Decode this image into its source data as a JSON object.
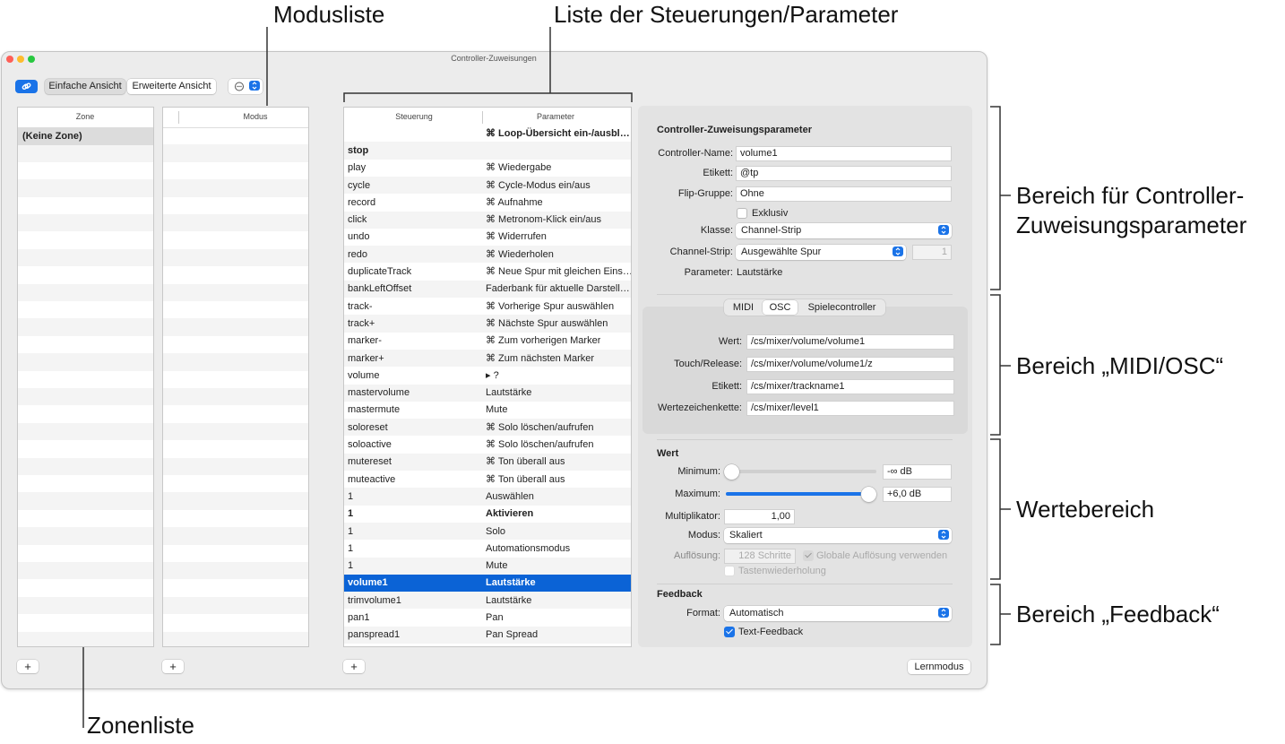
{
  "window": {
    "title": "Controller-Zuweisungen"
  },
  "toolbar": {
    "view_buttons": [
      "Einfache Ansicht",
      "Erweiterte Ansicht"
    ]
  },
  "zone_list": {
    "header": "Zone",
    "items": [
      "(Keine Zone)"
    ],
    "add_button": "+"
  },
  "mode_list": {
    "header": "Modus",
    "add_button": "+"
  },
  "controls_table": {
    "headers": [
      "Steuerung",
      "Parameter"
    ],
    "add_button": "+",
    "rows": [
      {
        "parameter": "⌘ Loop-Übersicht ein-/ausbl…",
        "bold": true
      },
      {
        "control": "stop",
        "bold": true
      },
      {
        "control": "play",
        "parameter": "⌘ Wiedergabe"
      },
      {
        "control": "cycle",
        "parameter": "⌘ Cycle-Modus ein/aus"
      },
      {
        "control": "record",
        "parameter": "⌘ Aufnahme"
      },
      {
        "control": "click",
        "parameter": "⌘ Metronom-Klick ein/aus"
      },
      {
        "control": "undo",
        "parameter": "⌘ Widerrufen"
      },
      {
        "control": "redo",
        "parameter": "⌘ Wiederholen"
      },
      {
        "control": "duplicateTrack",
        "parameter": "⌘ Neue Spur mit gleichen Eins…"
      },
      {
        "control": "bankLeftOffset",
        "parameter": "Faderbank für aktuelle Darstell…"
      },
      {
        "control": "track-",
        "parameter": "⌘ Vorherige Spur auswählen"
      },
      {
        "control": "track+",
        "parameter": "⌘ Nächste Spur auswählen"
      },
      {
        "control": "marker-",
        "parameter": "⌘ Zum vorherigen Marker"
      },
      {
        "control": "marker+",
        "parameter": "⌘ Zum nächsten Marker"
      },
      {
        "control": "volume",
        "parameter": "▸ ?"
      },
      {
        "control": "mastervolume",
        "parameter": "Lautstärke"
      },
      {
        "control": "mastermute",
        "parameter": "Mute"
      },
      {
        "control": "soloreset",
        "parameter": "⌘ Solo löschen/aufrufen"
      },
      {
        "control": "soloactive",
        "parameter": "⌘ Solo löschen/aufrufen"
      },
      {
        "control": "mutereset",
        "parameter": "⌘ Ton überall aus"
      },
      {
        "control": "muteactive",
        "parameter": "⌘ Ton überall aus"
      },
      {
        "control": "1",
        "parameter": "Auswählen"
      },
      {
        "control": "1",
        "parameter": "Aktivieren",
        "bold": true
      },
      {
        "control": "1",
        "parameter": "Solo"
      },
      {
        "control": "1",
        "parameter": "Automationsmodus"
      },
      {
        "control": "1",
        "parameter": "Mute"
      },
      {
        "control": "volume1",
        "parameter": "Lautstärke",
        "bold": true,
        "selected": true
      },
      {
        "control": "trimvolume1",
        "parameter": "Lautstärke"
      },
      {
        "control": "pan1",
        "parameter": "Pan"
      },
      {
        "control": "panspread1",
        "parameter": "Pan Spread"
      }
    ]
  },
  "assignment_parameters": {
    "title": "Controller-Zuweisungsparameter",
    "fields": [
      {
        "label": "Controller-Name:",
        "value": "volume1"
      },
      {
        "label": "Etikett:",
        "value": "@tp"
      },
      {
        "label": "Flip-Gruppe:",
        "value": "Ohne"
      }
    ],
    "exclusive": {
      "label": "Exklusiv",
      "checked": false
    },
    "class": {
      "label": "Klasse:",
      "value": "Channel-Strip"
    },
    "channel_strip": {
      "label": "Channel-Strip:",
      "value": "Ausgewählte Spur",
      "number": 1
    },
    "parameter": {
      "label": "Parameter:",
      "value": "Lautstärke"
    }
  },
  "midi_osc": {
    "tabs": [
      "MIDI",
      "OSC",
      "Spielecontroller"
    ],
    "selected_tab": 1,
    "fields": [
      {
        "label": "Wert:",
        "value": "/cs/mixer/volume/volume1"
      },
      {
        "label": "Touch/Release:",
        "value": "/cs/mixer/volume/volume1/z"
      },
      {
        "label": "Etikett:",
        "value": "/cs/mixer/trackname1"
      },
      {
        "label": "Wertezeichenkette:",
        "value": "/cs/mixer/level1"
      }
    ]
  },
  "value_range": {
    "title": "Wert",
    "minimum": {
      "label": "Minimum:",
      "value": "-∞ dB"
    },
    "maximum": {
      "label": "Maximum:",
      "value": "+6,0 dB"
    },
    "multiplier": {
      "label": "Multiplikator:",
      "value": "1,00"
    },
    "mode": {
      "label": "Modus:",
      "value": "Skaliert"
    },
    "resolution": {
      "label": "Auflösung:",
      "value": "128 Schritte"
    },
    "global_resolution": {
      "label": "Globale Auflösung verwenden",
      "checked": true
    },
    "key_repeat": {
      "label": "Tastenwiederholung",
      "checked": false
    }
  },
  "feedback": {
    "title": "Feedback",
    "format": {
      "label": "Format:",
      "value": "Automatisch"
    },
    "text_feedback": {
      "label": "Text-Feedback",
      "checked": true
    }
  },
  "learn_button": "Lernmodus",
  "annotations": {
    "mode_list": "Modusliste",
    "controls_list": "Liste der Steuerungen/Parameter",
    "zone_list": "Zonenliste",
    "assignment_area": [
      "Bereich für Controller-",
      "Zuweisungsparameter"
    ],
    "midi_osc_area": "Bereich „MIDI/OSC“",
    "value_area": "Wertebereich",
    "feedback_area": "Bereich „Feedback“"
  }
}
